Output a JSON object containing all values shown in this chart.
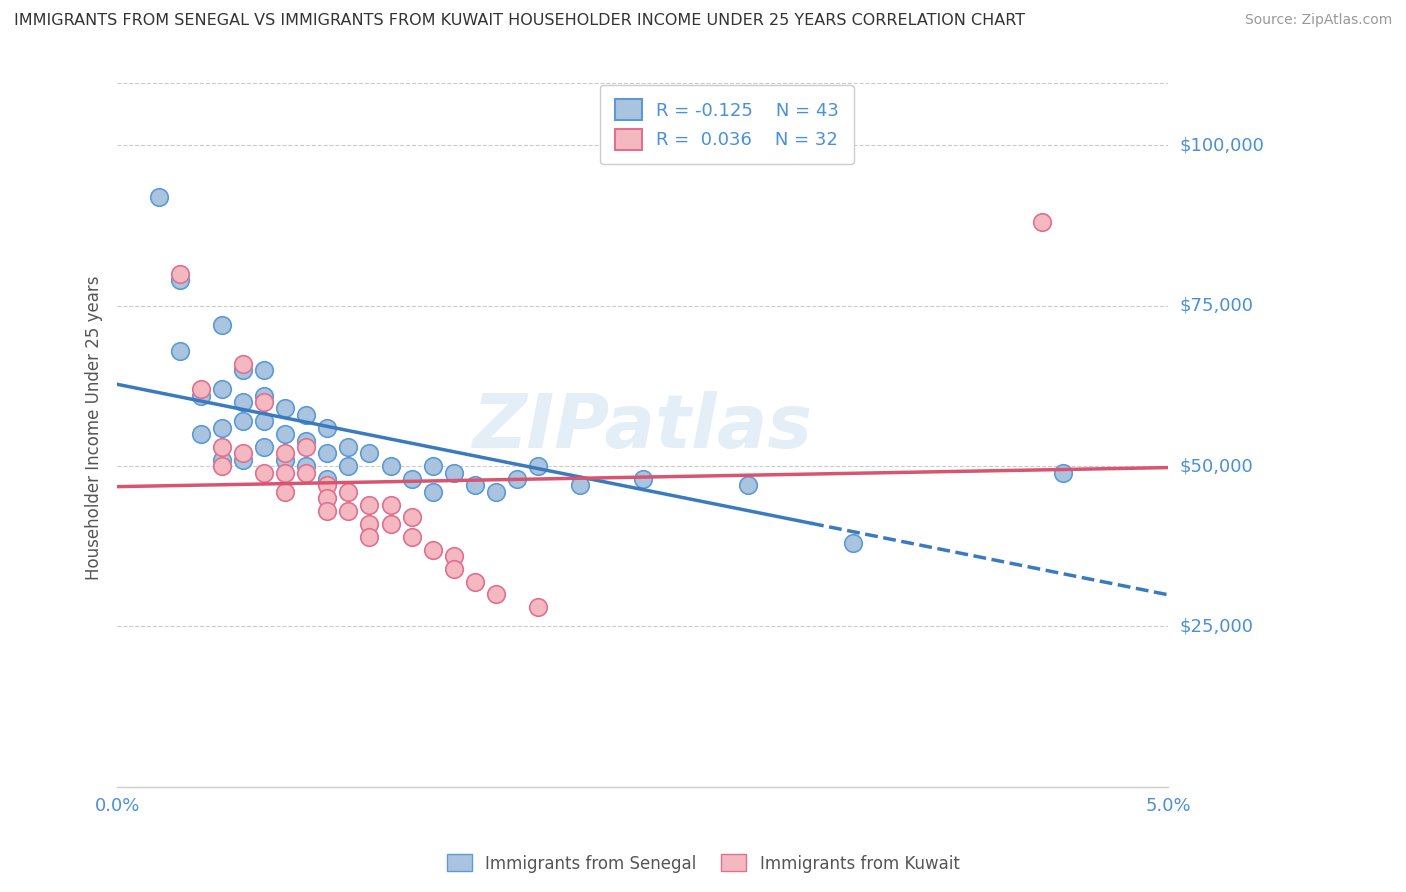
{
  "title": "IMMIGRANTS FROM SENEGAL VS IMMIGRANTS FROM KUWAIT HOUSEHOLDER INCOME UNDER 25 YEARS CORRELATION CHART",
  "source": "Source: ZipAtlas.com",
  "ylabel": "Householder Income Under 25 years",
  "xlim": [
    0.0,
    0.05
  ],
  "ylim": [
    0,
    112000
  ],
  "background_color": "#ffffff",
  "senegal_color": "#aac4e0",
  "senegal_edge": "#5b9bd5",
  "kuwait_color": "#f4b8c1",
  "kuwait_edge": "#e07090",
  "senegal_line_color": "#3a7abf",
  "kuwait_line_color": "#d9546e",
  "grid_color": "#cccccc",
  "axis_label_color": "#4a90d9",
  "ytick_vals": [
    25000,
    50000,
    75000,
    100000
  ],
  "ytick_strs": [
    "$25,000",
    "$50,000",
    "$75,000",
    "$100,000"
  ],
  "senegal_x": [
    0.002,
    0.003,
    0.003,
    0.004,
    0.004,
    0.005,
    0.005,
    0.005,
    0.005,
    0.006,
    0.006,
    0.006,
    0.006,
    0.007,
    0.007,
    0.007,
    0.007,
    0.008,
    0.008,
    0.008,
    0.009,
    0.009,
    0.009,
    0.01,
    0.01,
    0.01,
    0.011,
    0.011,
    0.012,
    0.013,
    0.014,
    0.015,
    0.015,
    0.016,
    0.017,
    0.018,
    0.019,
    0.02,
    0.022,
    0.025,
    0.03,
    0.035,
    0.045
  ],
  "senegal_y": [
    92000,
    79000,
    68000,
    61000,
    55000,
    72000,
    62000,
    56000,
    51000,
    65000,
    60000,
    57000,
    51000,
    65000,
    61000,
    57000,
    53000,
    59000,
    55000,
    51000,
    58000,
    54000,
    50000,
    56000,
    52000,
    48000,
    53000,
    50000,
    52000,
    50000,
    48000,
    50000,
    46000,
    49000,
    47000,
    46000,
    48000,
    50000,
    47000,
    48000,
    47000,
    38000,
    49000
  ],
  "kuwait_x": [
    0.003,
    0.004,
    0.005,
    0.005,
    0.006,
    0.006,
    0.007,
    0.007,
    0.008,
    0.008,
    0.008,
    0.009,
    0.009,
    0.01,
    0.01,
    0.01,
    0.011,
    0.011,
    0.012,
    0.012,
    0.012,
    0.013,
    0.013,
    0.014,
    0.014,
    0.015,
    0.016,
    0.016,
    0.017,
    0.018,
    0.02,
    0.044
  ],
  "kuwait_y": [
    80000,
    62000,
    53000,
    50000,
    66000,
    52000,
    60000,
    49000,
    52000,
    49000,
    46000,
    53000,
    49000,
    47000,
    45000,
    43000,
    46000,
    43000,
    44000,
    41000,
    39000,
    44000,
    41000,
    42000,
    39000,
    37000,
    36000,
    34000,
    32000,
    30000,
    28000,
    88000
  ]
}
